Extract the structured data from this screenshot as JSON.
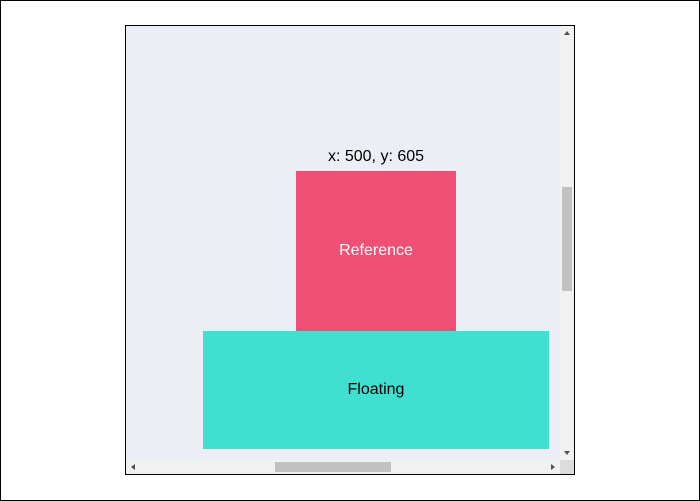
{
  "coords_label": "x: 500, y: 605",
  "reference": {
    "label": "Reference",
    "color": "#ef5073"
  },
  "floating": {
    "label": "Floating",
    "color": "#40e0d0"
  },
  "container": {
    "background": "#ebeef5"
  },
  "icons": {
    "scroll_up": "chevron-up-icon",
    "scroll_down": "chevron-down-icon",
    "scroll_left": "chevron-left-icon",
    "scroll_right": "chevron-right-icon"
  }
}
